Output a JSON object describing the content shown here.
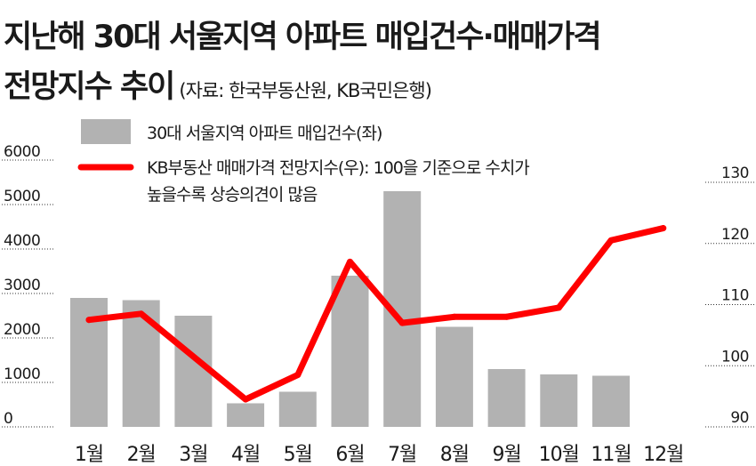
{
  "title": {
    "line1": "지난해 30대 서울지역 아파트 매입건수·매매가격",
    "line2": "전망지수 추이",
    "source": "(자료: 한국부동산원, KB국민은행)"
  },
  "legend": {
    "bar_label": "30대 서울지역 아파트 매입건수(좌)",
    "line_label_1": "KB부동산 매매가격 전망지수(우): 100을 기준으로 수치가",
    "line_label_2": "높을수록 상승의견이 많음"
  },
  "colors": {
    "bar": "#b2b2b2",
    "line": "#ff0000",
    "grid": "#333333"
  },
  "chart_data": {
    "type": "bar",
    "categories": [
      "1월",
      "2월",
      "3월",
      "4월",
      "5월",
      "6월",
      "7월",
      "8월",
      "9월",
      "10월",
      "11월",
      "12월"
    ],
    "series": [
      {
        "name": "30대 서울지역 아파트 매입건수(좌)",
        "type": "bar",
        "axis": "left",
        "values": [
          2900,
          2850,
          2500,
          530,
          790,
          3400,
          5300,
          2250,
          1300,
          1180,
          1150,
          null
        ]
      },
      {
        "name": "KB부동산 매매가격 전망지수(우)",
        "type": "line",
        "axis": "right",
        "values": [
          107.5,
          108.5,
          null,
          94.5,
          98.5,
          117,
          107,
          108,
          108,
          109.5,
          120.5,
          122.5
        ]
      }
    ],
    "ylim_left": [
      0,
      6000
    ],
    "yticks_left": [
      "0",
      "1000",
      "2000",
      "3000",
      "4000",
      "5000",
      "6000"
    ],
    "ylim_right": [
      90,
      130
    ],
    "yticks_right": [
      "90",
      "100",
      "110",
      "120",
      "130"
    ],
    "grid": true
  }
}
